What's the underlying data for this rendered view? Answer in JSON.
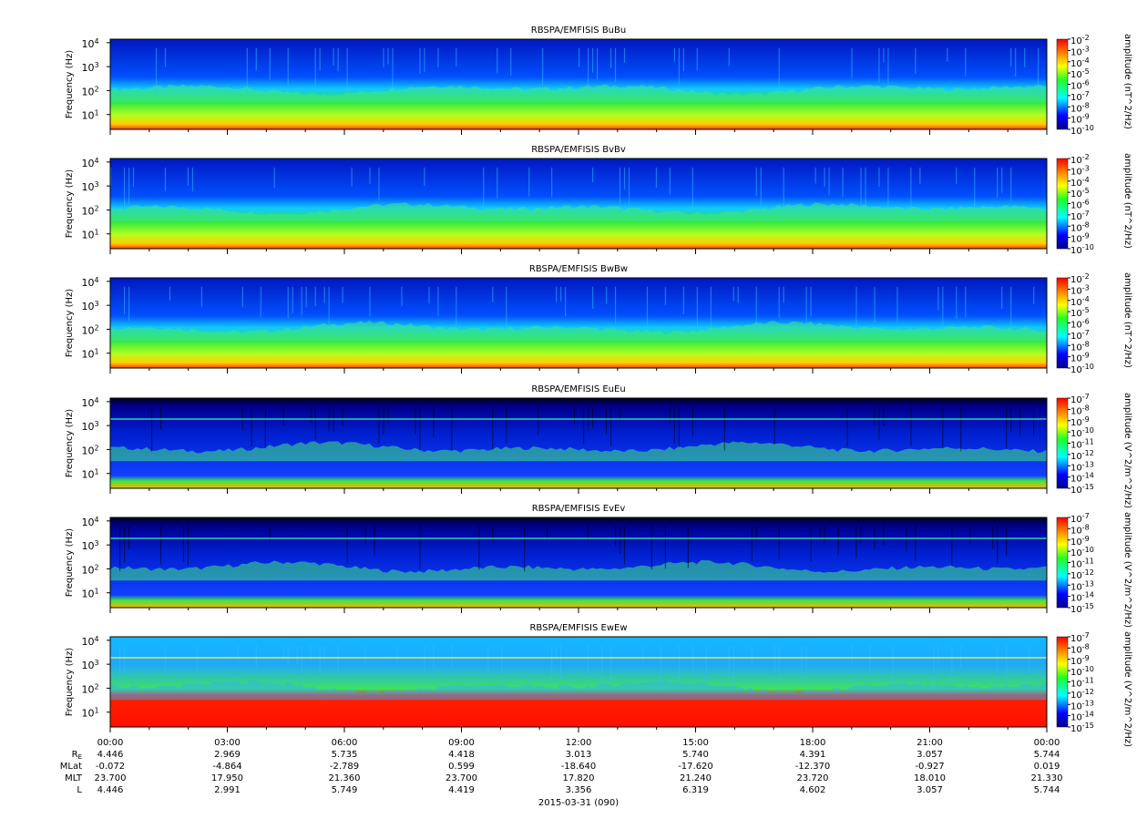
{
  "chart_data": [
    {
      "type": "spectrogram",
      "title": "RBSPA/EMFISIS  BuBu",
      "ylabel": "Frequency (Hz)",
      "log_y": true,
      "ylim": [
        2.4,
        14000
      ],
      "yticks": [
        {
          "value": 10,
          "label": "10",
          "exponent": "1"
        },
        {
          "value": 100,
          "label": "10",
          "exponent": "2"
        },
        {
          "value": 1000,
          "label": "10",
          "exponent": "3"
        },
        {
          "value": 10000,
          "label": "10",
          "exponent": "4"
        }
      ],
      "colorbar": {
        "label": "amplitude (nT^2/Hz)",
        "log": true,
        "zlim": [
          1e-10,
          0.01
        ],
        "ticks": [
          {
            "value": 0.01,
            "label": "10",
            "exponent": "-2"
          },
          {
            "value": 0.001,
            "label": "10",
            "exponent": "-3"
          },
          {
            "value": 0.0001,
            "label": "10",
            "exponent": "-4"
          },
          {
            "value": 1e-05,
            "label": "10",
            "exponent": "-5"
          },
          {
            "value": 1e-06,
            "label": "10",
            "exponent": "-6"
          },
          {
            "value": 1e-07,
            "label": "10",
            "exponent": "-7"
          },
          {
            "value": 1e-08,
            "label": "10",
            "exponent": "-8"
          },
          {
            "value": 1e-09,
            "label": "10",
            "exponent": "-9"
          },
          {
            "value": 1e-10,
            "label": "10",
            "exponent": "-10"
          }
        ]
      }
    },
    {
      "type": "spectrogram",
      "title": "RBSPA/EMFISIS  BvBv",
      "ylabel": "Frequency (Hz)",
      "log_y": true,
      "ylim": [
        2.4,
        14000
      ],
      "yticks": [
        {
          "value": 10,
          "label": "10",
          "exponent": "1"
        },
        {
          "value": 100,
          "label": "10",
          "exponent": "2"
        },
        {
          "value": 1000,
          "label": "10",
          "exponent": "3"
        },
        {
          "value": 10000,
          "label": "10",
          "exponent": "4"
        }
      ],
      "colorbar": {
        "label": "amplitude (nT^2/Hz)",
        "log": true,
        "zlim": [
          1e-10,
          0.01
        ],
        "ticks": [
          {
            "value": 0.01,
            "label": "10",
            "exponent": "-2"
          },
          {
            "value": 0.001,
            "label": "10",
            "exponent": "-3"
          },
          {
            "value": 0.0001,
            "label": "10",
            "exponent": "-4"
          },
          {
            "value": 1e-05,
            "label": "10",
            "exponent": "-5"
          },
          {
            "value": 1e-06,
            "label": "10",
            "exponent": "-6"
          },
          {
            "value": 1e-07,
            "label": "10",
            "exponent": "-7"
          },
          {
            "value": 1e-08,
            "label": "10",
            "exponent": "-8"
          },
          {
            "value": 1e-09,
            "label": "10",
            "exponent": "-9"
          },
          {
            "value": 1e-10,
            "label": "10",
            "exponent": "-10"
          }
        ]
      }
    },
    {
      "type": "spectrogram",
      "title": "RBSPA/EMFISIS  BwBw",
      "ylabel": "Frequency (Hz)",
      "log_y": true,
      "ylim": [
        2.4,
        14000
      ],
      "yticks": [
        {
          "value": 10,
          "label": "10",
          "exponent": "1"
        },
        {
          "value": 100,
          "label": "10",
          "exponent": "2"
        },
        {
          "value": 1000,
          "label": "10",
          "exponent": "3"
        },
        {
          "value": 10000,
          "label": "10",
          "exponent": "4"
        }
      ],
      "colorbar": {
        "label": "amplitude (nT^2/Hz)",
        "log": true,
        "zlim": [
          1e-10,
          0.01
        ],
        "ticks": [
          {
            "value": 0.01,
            "label": "10",
            "exponent": "-2"
          },
          {
            "value": 0.001,
            "label": "10",
            "exponent": "-3"
          },
          {
            "value": 0.0001,
            "label": "10",
            "exponent": "-4"
          },
          {
            "value": 1e-05,
            "label": "10",
            "exponent": "-5"
          },
          {
            "value": 1e-06,
            "label": "10",
            "exponent": "-6"
          },
          {
            "value": 1e-07,
            "label": "10",
            "exponent": "-7"
          },
          {
            "value": 1e-08,
            "label": "10",
            "exponent": "-8"
          },
          {
            "value": 1e-09,
            "label": "10",
            "exponent": "-9"
          },
          {
            "value": 1e-10,
            "label": "10",
            "exponent": "-10"
          }
        ]
      }
    },
    {
      "type": "spectrogram",
      "title": "RBSPA/EMFISIS  EuEu",
      "ylabel": "Frequency (Hz)",
      "log_y": true,
      "ylim": [
        2.4,
        14000
      ],
      "yticks": [
        {
          "value": 10,
          "label": "10",
          "exponent": "1"
        },
        {
          "value": 100,
          "label": "10",
          "exponent": "2"
        },
        {
          "value": 1000,
          "label": "10",
          "exponent": "3"
        },
        {
          "value": 10000,
          "label": "10",
          "exponent": "4"
        }
      ],
      "colorbar": {
        "label": "amplitude (V^2/m^2/Hz)",
        "log": true,
        "zlim": [
          1e-15,
          1e-07
        ],
        "ticks": [
          {
            "value": 1e-07,
            "label": "10",
            "exponent": "-7"
          },
          {
            "value": 1e-08,
            "label": "10",
            "exponent": "-8"
          },
          {
            "value": 1e-09,
            "label": "10",
            "exponent": "-9"
          },
          {
            "value": 1e-10,
            "label": "10",
            "exponent": "-10"
          },
          {
            "value": 1e-11,
            "label": "10",
            "exponent": "-11"
          },
          {
            "value": 1e-12,
            "label": "10",
            "exponent": "-12"
          },
          {
            "value": 1e-13,
            "label": "10",
            "exponent": "-13"
          },
          {
            "value": 1e-14,
            "label": "10",
            "exponent": "-14"
          },
          {
            "value": 1e-15,
            "label": "10",
            "exponent": "-15"
          }
        ]
      }
    },
    {
      "type": "spectrogram",
      "title": "RBSPA/EMFISIS  EvEv",
      "ylabel": "Frequency (Hz)",
      "log_y": true,
      "ylim": [
        2.4,
        14000
      ],
      "yticks": [
        {
          "value": 10,
          "label": "10",
          "exponent": "1"
        },
        {
          "value": 100,
          "label": "10",
          "exponent": "2"
        },
        {
          "value": 1000,
          "label": "10",
          "exponent": "3"
        },
        {
          "value": 10000,
          "label": "10",
          "exponent": "4"
        }
      ],
      "colorbar": {
        "label": "amplitude (V^2/m^2/Hz)",
        "log": true,
        "zlim": [
          1e-15,
          1e-07
        ],
        "ticks": [
          {
            "value": 1e-07,
            "label": "10",
            "exponent": "-7"
          },
          {
            "value": 1e-08,
            "label": "10",
            "exponent": "-8"
          },
          {
            "value": 1e-09,
            "label": "10",
            "exponent": "-9"
          },
          {
            "value": 1e-10,
            "label": "10",
            "exponent": "-10"
          },
          {
            "value": 1e-11,
            "label": "10",
            "exponent": "-11"
          },
          {
            "value": 1e-12,
            "label": "10",
            "exponent": "-12"
          },
          {
            "value": 1e-13,
            "label": "10",
            "exponent": "-13"
          },
          {
            "value": 1e-14,
            "label": "10",
            "exponent": "-14"
          },
          {
            "value": 1e-15,
            "label": "10",
            "exponent": "-15"
          }
        ]
      }
    },
    {
      "type": "spectrogram",
      "title": "RBSPA/EMFISIS  EwEw",
      "ylabel": "Frequency (Hz)",
      "log_y": true,
      "ylim": [
        2.4,
        14000
      ],
      "yticks": [
        {
          "value": 10,
          "label": "10",
          "exponent": "1"
        },
        {
          "value": 100,
          "label": "10",
          "exponent": "2"
        },
        {
          "value": 1000,
          "label": "10",
          "exponent": "3"
        },
        {
          "value": 10000,
          "label": "10",
          "exponent": "4"
        }
      ],
      "colorbar": {
        "label": "amplitude (V^2/m^2/Hz)",
        "log": true,
        "zlim": [
          1e-15,
          1e-07
        ],
        "ticks": [
          {
            "value": 1e-07,
            "label": "10",
            "exponent": "-7"
          },
          {
            "value": 1e-08,
            "label": "10",
            "exponent": "-8"
          },
          {
            "value": 1e-09,
            "label": "10",
            "exponent": "-9"
          },
          {
            "value": 1e-10,
            "label": "10",
            "exponent": "-10"
          },
          {
            "value": 1e-11,
            "label": "10",
            "exponent": "-11"
          },
          {
            "value": 1e-12,
            "label": "10",
            "exponent": "-12"
          },
          {
            "value": 1e-13,
            "label": "10",
            "exponent": "-13"
          },
          {
            "value": 1e-14,
            "label": "10",
            "exponent": "-14"
          },
          {
            "value": 1e-15,
            "label": "10",
            "exponent": "-15"
          }
        ]
      }
    }
  ],
  "x_axis": {
    "xlim": [
      0,
      24
    ],
    "xticks": [
      {
        "value": 0,
        "label": "00:00"
      },
      {
        "value": 3,
        "label": "03:00"
      },
      {
        "value": 6,
        "label": "06:00"
      },
      {
        "value": 9,
        "label": "09:00"
      },
      {
        "value": 12,
        "label": "12:00"
      },
      {
        "value": 15,
        "label": "15:00"
      },
      {
        "value": 18,
        "label": "18:00"
      },
      {
        "value": 21,
        "label": "21:00"
      },
      {
        "value": 24,
        "label": "00:00"
      }
    ],
    "xminor_ticks": [
      1,
      2,
      4,
      5,
      7,
      8,
      10,
      11,
      13,
      14,
      16,
      17,
      19,
      20,
      22,
      23
    ],
    "date": "2015-03-31 (090)"
  },
  "ephemeris": [
    {
      "label": "R",
      "subscript": "E",
      "values": [
        "4.446",
        "2.969",
        "5.735",
        "4.418",
        "3.013",
        "5.740",
        "4.391",
        "3.057",
        "5.744"
      ]
    },
    {
      "label": "MLat",
      "values": [
        "-0.072",
        "-4.864",
        "-2.789",
        "0.599",
        "-18.640",
        "-17.620",
        "-12.370",
        "-0.927",
        "0.019"
      ]
    },
    {
      "label": "MLT",
      "values": [
        "23.700",
        "17.950",
        "21.360",
        "23.700",
        "17.820",
        "21.240",
        "23.720",
        "18.010",
        "21.330"
      ]
    },
    {
      "label": "L",
      "values": [
        "4.446",
        "2.991",
        "5.749",
        "4.419",
        "3.356",
        "6.319",
        "4.602",
        "3.057",
        "5.744"
      ]
    }
  ]
}
